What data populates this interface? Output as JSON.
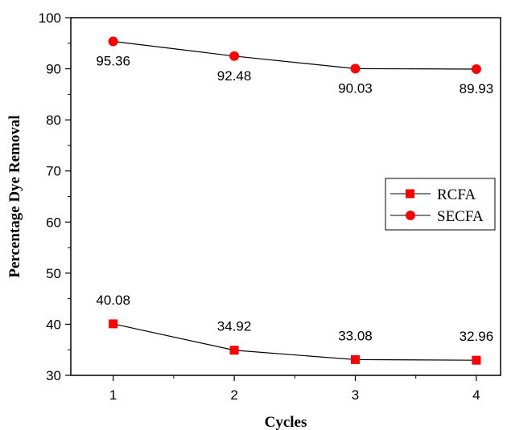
{
  "chart_data": {
    "type": "line",
    "x": [
      1,
      2,
      3,
      4
    ],
    "xlabel": "Cycles",
    "ylabel": "Percentage Dye Removal",
    "xlim": [
      0.65,
      4.2
    ],
    "ylim": [
      30,
      100
    ],
    "x_ticks": [
      "1",
      "2",
      "3",
      "4"
    ],
    "y_ticks": [
      "30",
      "40",
      "50",
      "60",
      "70",
      "80",
      "90",
      "100"
    ],
    "series": [
      {
        "name": "RCFA",
        "marker": "square",
        "color": "#ff0000",
        "values": [
          40.08,
          34.92,
          33.08,
          32.96
        ],
        "labels": [
          "40.08",
          "34.92",
          "33.08",
          "32.96"
        ]
      },
      {
        "name": "SECFA",
        "marker": "circle",
        "color": "#ff0000",
        "values": [
          95.36,
          92.48,
          90.03,
          89.93
        ],
        "labels": [
          "95.36",
          "92.48",
          "90.03",
          "89.93"
        ]
      }
    ],
    "legend_position": "right",
    "grid": false
  }
}
